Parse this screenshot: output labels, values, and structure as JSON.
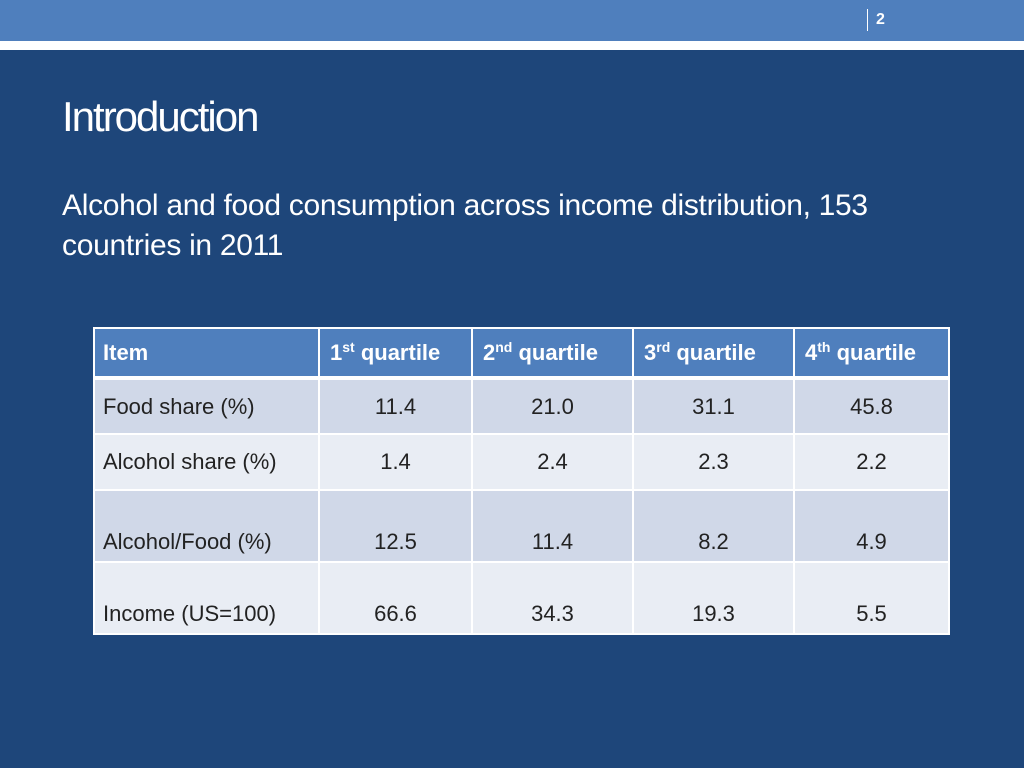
{
  "slide": {
    "number": "2",
    "title": "Introduction",
    "subtitle": "Alcohol and food consumption across income distribution, 153 countries in 2011"
  },
  "table": {
    "header": {
      "item": "Item",
      "q1_num": "1",
      "q1_sup": "st",
      "q2_num": "2",
      "q2_sup": "nd",
      "q3_num": "3",
      "q3_sup": "rd",
      "q4_num": "4",
      "q4_sup": "th",
      "quartile_word": " quartile"
    },
    "rows": [
      {
        "item": "Food share (%)",
        "values": [
          "11.4",
          "21.0",
          "31.1",
          "45.8"
        ]
      },
      {
        "item": "Alcohol share (%)",
        "values": [
          "1.4",
          "2.4",
          "2.3",
          "2.2"
        ]
      },
      {
        "item": "Alcohol/Food (%)",
        "values": [
          "12.5",
          "11.4",
          "8.2",
          "4.9"
        ]
      },
      {
        "item": "Income (US=100)",
        "values": [
          "66.6",
          "34.3",
          "19.3",
          "5.5"
        ]
      }
    ]
  },
  "colors": {
    "background": "#1e467a",
    "top_bar": "#4f7fbd",
    "header_fill": "#4f7fbd",
    "row_dark": "#d0d8e8",
    "row_light": "#e9edf4"
  }
}
